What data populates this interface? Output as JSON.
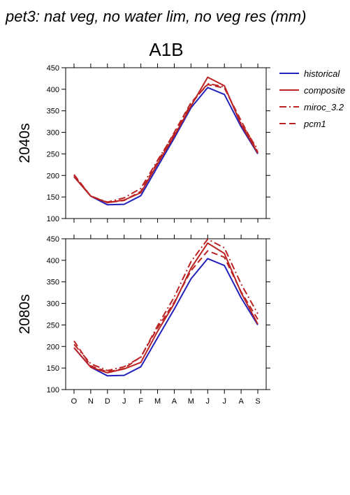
{
  "page_title": "pet3: nat veg, no water lim, no veg res (mm)",
  "scenario_title": "A1B",
  "legend": [
    "historical",
    "composite",
    "miroc_3.2",
    "pcm1"
  ],
  "colors": {
    "historical": "#2222bb",
    "scenario": "#bb2222"
  },
  "chart_data": [
    {
      "type": "line",
      "ylabel": "2040s",
      "categories": [
        "O",
        "N",
        "D",
        "J",
        "F",
        "M",
        "A",
        "M",
        "J",
        "J",
        "A",
        "S"
      ],
      "ylim": [
        100,
        450
      ],
      "yticks": [
        100,
        150,
        200,
        250,
        300,
        350,
        400,
        450
      ],
      "grid": false,
      "legend_position": "right",
      "series": [
        {
          "name": "historical",
          "style": "solid",
          "values": [
            197,
            152,
            132,
            133,
            153,
            220,
            287,
            357,
            404,
            388,
            313,
            250
          ]
        },
        {
          "name": "composite",
          "style": "solid",
          "values": [
            197,
            152,
            137,
            143,
            160,
            227,
            292,
            361,
            428,
            408,
            318,
            252
          ]
        },
        {
          "name": "miroc_3.2",
          "style": "dashdot",
          "values": [
            200,
            152,
            138,
            148,
            170,
            235,
            297,
            366,
            413,
            406,
            321,
            260
          ]
        },
        {
          "name": "pcm1",
          "style": "dashed",
          "values": [
            202,
            152,
            137,
            142,
            163,
            231,
            300,
            369,
            411,
            403,
            327,
            254
          ]
        }
      ]
    },
    {
      "type": "line",
      "ylabel": "2080s",
      "categories": [
        "O",
        "N",
        "D",
        "J",
        "F",
        "M",
        "A",
        "M",
        "J",
        "J",
        "A",
        "S"
      ],
      "ylim": [
        100,
        450
      ],
      "yticks": [
        100,
        150,
        200,
        250,
        300,
        350,
        400,
        450
      ],
      "grid": false,
      "series": [
        {
          "name": "historical",
          "style": "solid",
          "values": [
            197,
            152,
            132,
            133,
            153,
            220,
            287,
            357,
            404,
            388,
            313,
            250
          ]
        },
        {
          "name": "composite",
          "style": "solid",
          "values": [
            197,
            152,
            139,
            148,
            163,
            235,
            300,
            382,
            440,
            416,
            325,
            252
          ]
        },
        {
          "name": "miroc_3.2",
          "style": "dashdot",
          "values": [
            205,
            160,
            144,
            153,
            175,
            248,
            315,
            397,
            449,
            429,
            345,
            276
          ]
        },
        {
          "name": "pcm1",
          "style": "dashed",
          "values": [
            213,
            155,
            141,
            149,
            176,
            243,
            303,
            376,
            422,
            407,
            327,
            263
          ]
        }
      ]
    }
  ]
}
